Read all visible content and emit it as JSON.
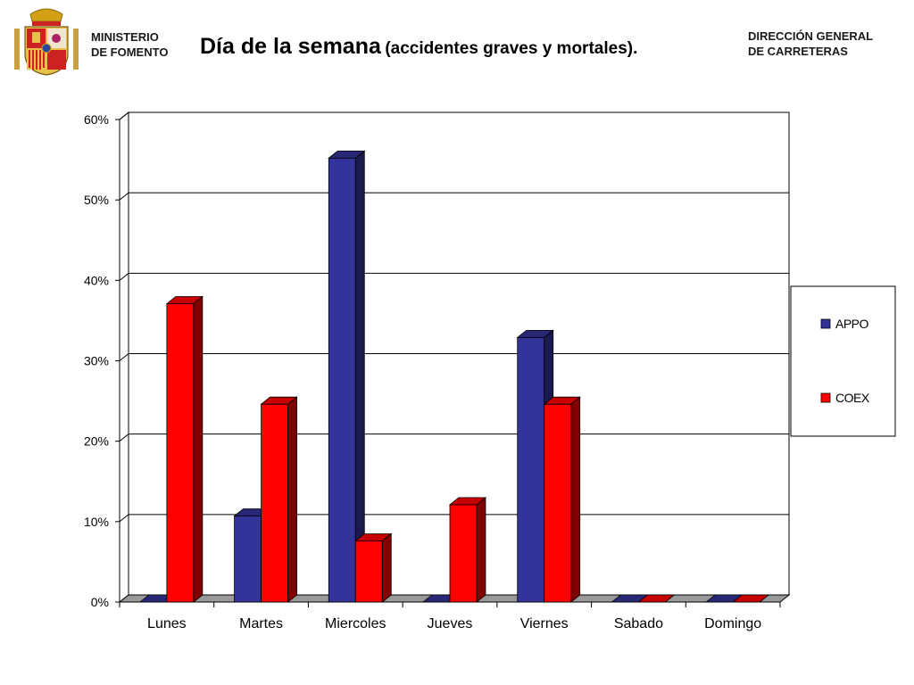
{
  "header": {
    "ministry_line1": "MINISTERIO",
    "ministry_line2": "DE FOMENTO",
    "title_main": "Día de la semana",
    "title_sub": "(accidentes graves y mortales).",
    "dgc_line1": "DIRECCIÓN GENERAL",
    "dgc_line2": "DE CARRETERAS"
  },
  "chart_data": {
    "type": "bar",
    "title": "Día de la semana (accidentes graves y mortales).",
    "xlabel": "",
    "ylabel": "",
    "categories": [
      "Lunes",
      "Martes",
      "Miercoles",
      "Jueves",
      "Viernes",
      "Sabado",
      "Domingo"
    ],
    "series": [
      {
        "name": "APPO",
        "color": "#333399",
        "values": [
          0,
          10.7,
          55.2,
          0,
          32.9,
          0,
          0
        ]
      },
      {
        "name": "COEX",
        "color": "#ff0000",
        "values": [
          37.1,
          24.6,
          7.6,
          12.1,
          24.6,
          0,
          0
        ]
      }
    ],
    "ylim": [
      0,
      60
    ],
    "yticks": [
      "0%",
      "10%",
      "20%",
      "30%",
      "40%",
      "50%",
      "60%"
    ],
    "grid": true,
    "legend_position": "right"
  }
}
